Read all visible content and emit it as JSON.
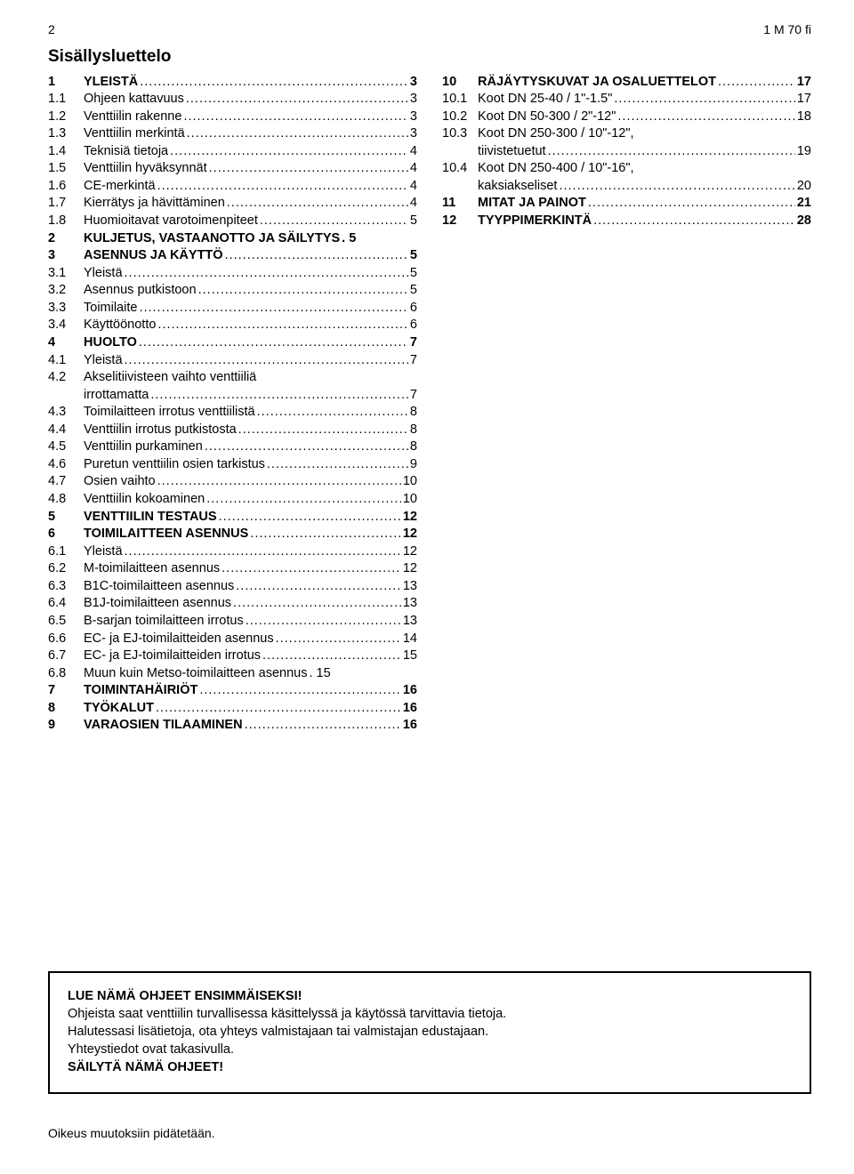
{
  "header": {
    "page_number": "2",
    "doc_id": "1 M 70 fi"
  },
  "toc_title": "Sisällysluettelo",
  "left": [
    {
      "num": "1",
      "label": "YLEISTÄ",
      "page": "3",
      "top": true
    },
    {
      "num": "1.1",
      "label": "Ohjeen kattavuus",
      "page": "3"
    },
    {
      "num": "1.2",
      "label": "Venttiilin rakenne",
      "page": "3"
    },
    {
      "num": "1.3",
      "label": "Venttiilin merkintä",
      "page": "3"
    },
    {
      "num": "1.4",
      "label": "Teknisiä tietoja",
      "page": "4"
    },
    {
      "num": "1.5",
      "label": "Venttiilin hyväksynnät",
      "page": "4"
    },
    {
      "num": "1.6",
      "label": "CE-merkintä",
      "page": "4"
    },
    {
      "num": "1.7",
      "label": "Kierrätys ja hävittäminen",
      "page": "4"
    },
    {
      "num": "1.8",
      "label": "Huomioitavat varotoimenpiteet",
      "page": "5"
    },
    {
      "num": "2",
      "label": "KULJETUS, VASTAANOTTO JA SÄILYTYS",
      "page": "5",
      "top": true,
      "tight": true
    },
    {
      "num": "3",
      "label": "ASENNUS JA KÄYTTÖ",
      "page": "5",
      "top": true
    },
    {
      "num": "3.1",
      "label": "Yleistä",
      "page": "5"
    },
    {
      "num": "3.2",
      "label": "Asennus putkistoon",
      "page": "5"
    },
    {
      "num": "3.3",
      "label": "Toimilaite",
      "page": "6"
    },
    {
      "num": "3.4",
      "label": "Käyttöönotto",
      "page": "6"
    },
    {
      "num": "4",
      "label": "HUOLTO",
      "page": "7",
      "top": true
    },
    {
      "num": "4.1",
      "label": "Yleistä",
      "page": "7"
    },
    {
      "num": "4.2",
      "label": "Akselitiivisteen vaihto venttiiliä",
      "cont": "irrottamatta",
      "page": "7"
    },
    {
      "num": "4.3",
      "label": "Toimilaitteen irrotus venttiilistä",
      "page": "8"
    },
    {
      "num": "4.4",
      "label": "Venttiilin irrotus putkistosta",
      "page": "8"
    },
    {
      "num": "4.5",
      "label": "Venttiilin purkaminen",
      "page": "8"
    },
    {
      "num": "4.6",
      "label": "Puretun venttiilin osien tarkistus",
      "page": "9"
    },
    {
      "num": "4.7",
      "label": "Osien vaihto",
      "page": "10"
    },
    {
      "num": "4.8",
      "label": "Venttiilin kokoaminen",
      "page": "10"
    },
    {
      "num": "5",
      "label": "VENTTIILIN TESTAUS",
      "page": "12",
      "top": true
    },
    {
      "num": "6",
      "label": "TOIMILAITTEEN ASENNUS",
      "page": "12",
      "top": true
    },
    {
      "num": "6.1",
      "label": "Yleistä",
      "page": "12"
    },
    {
      "num": "6.2",
      "label": "M-toimilaitteen asennus",
      "page": "12"
    },
    {
      "num": "6.3",
      "label": "B1C-toimilaitteen asennus",
      "page": "13"
    },
    {
      "num": "6.4",
      "label": "B1J-toimilaitteen asennus",
      "page": "13"
    },
    {
      "num": "6.5",
      "label": "B-sarjan toimilaitteen irrotus",
      "page": "13"
    },
    {
      "num": "6.6",
      "label": "EC- ja EJ-toimilaitteiden asennus",
      "page": "14"
    },
    {
      "num": "6.7",
      "label": "EC- ja EJ-toimilaitteiden irrotus",
      "page": "15"
    },
    {
      "num": "6.8",
      "label": "Muun kuin Metso-toimilaitteen asennus",
      "page": "15",
      "tight": true
    },
    {
      "num": "7",
      "label": "TOIMINTAHÄIRIÖT",
      "page": "16",
      "top": true
    },
    {
      "num": "8",
      "label": "TYÖKALUT",
      "page": "16",
      "top": true
    },
    {
      "num": "9",
      "label": "VARAOSIEN TILAAMINEN",
      "page": "16",
      "top": true
    }
  ],
  "right": [
    {
      "num": "10",
      "label": "RÄJÄYTYSKUVAT JA OSALUETTELOT",
      "page": "17",
      "top": true
    },
    {
      "num": "10.1",
      "label": "Koot DN 25-40 / 1\"-1.5\"",
      "page": "17"
    },
    {
      "num": "10.2",
      "label": "Koot DN 50-300 / 2\"-12\"",
      "page": "18"
    },
    {
      "num": "10.3",
      "label": "Koot DN 250-300 / 10\"-12\",",
      "cont": "tiivistetuetut",
      "page": "19"
    },
    {
      "num": "10.4",
      "label": "Koot DN 250-400 / 10\"-16\",",
      "cont": "kaksiakseliset",
      "page": "20"
    },
    {
      "num": "11",
      "label": "MITAT JA PAINOT",
      "page": "21",
      "top": true
    },
    {
      "num": "12",
      "label": "TYYPPIMERKINTÄ",
      "page": "28",
      "top": true
    }
  ],
  "notice": {
    "line1": "LUE NÄMÄ OHJEET ENSIMMÄISEKSI!",
    "line2": "Ohjeista saat venttiilin turvallisessa käsittelyssä ja käytössä tarvittavia tietoja.",
    "line3": "Halutessasi lisätietoja, ota yhteys valmistajaan tai valmistajan edustajaan.",
    "line4": "Yhteystiedot ovat takasivulla.",
    "line5": "SÄILYTÄ NÄMÄ OHJEET!"
  },
  "footer": "Oikeus muutoksiin pidätetään."
}
